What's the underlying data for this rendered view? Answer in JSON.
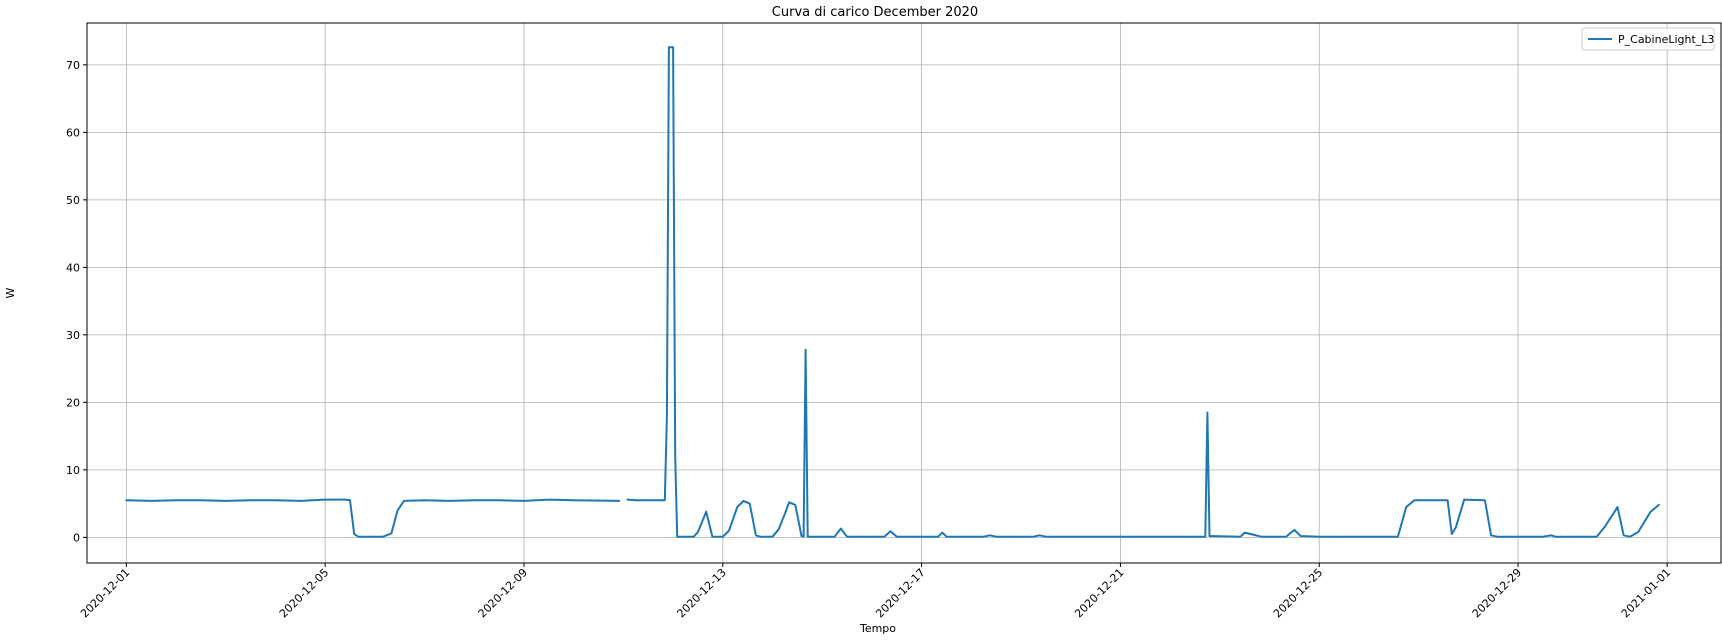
{
  "chart_data": {
    "type": "line",
    "title": "Curva di carico December 2020",
    "xlabel": "Tempo",
    "ylabel": "W",
    "x_range": [
      "2020-11-30T05:00",
      "2021-01-02T02:00"
    ],
    "ylim": [
      -3.8,
      76.2
    ],
    "y_ticks": [
      0,
      10,
      20,
      30,
      40,
      50,
      60,
      70
    ],
    "x_ticks": [
      "2020-12-01",
      "2020-12-05",
      "2020-12-09",
      "2020-12-13",
      "2020-12-17",
      "2020-12-21",
      "2020-12-25",
      "2020-12-29",
      "2021-01-01"
    ],
    "grid": true,
    "legend_position": "top-right",
    "series": [
      {
        "name": "P_CabineLight_L3",
        "color": "#1f77b4",
        "segments": [
          [
            [
              "2020-12-01T00:00",
              5.5
            ],
            [
              "2020-12-01T12:00",
              5.4
            ],
            [
              "2020-12-02T00:00",
              5.5
            ],
            [
              "2020-12-02T12:00",
              5.5
            ],
            [
              "2020-12-03T00:00",
              5.4
            ],
            [
              "2020-12-03T12:00",
              5.5
            ],
            [
              "2020-12-04T00:00",
              5.5
            ],
            [
              "2020-12-04T12:00",
              5.4
            ],
            [
              "2020-12-05T00:00",
              5.6
            ],
            [
              "2020-12-05T10:00",
              5.6
            ],
            [
              "2020-12-05T12:00",
              5.5
            ],
            [
              "2020-12-05T14:00",
              0.5
            ],
            [
              "2020-12-05T16:00",
              0.1
            ],
            [
              "2020-12-06T04:00",
              0.1
            ],
            [
              "2020-12-06T08:00",
              0.6
            ],
            [
              "2020-12-06T11:00",
              4.0
            ],
            [
              "2020-12-06T14:00",
              5.4
            ],
            [
              "2020-12-07T00:00",
              5.5
            ],
            [
              "2020-12-07T12:00",
              5.4
            ],
            [
              "2020-12-08T00:00",
              5.5
            ],
            [
              "2020-12-08T12:00",
              5.5
            ],
            [
              "2020-12-09T00:00",
              5.4
            ],
            [
              "2020-12-09T12:00",
              5.6
            ],
            [
              "2020-12-10T00:00",
              5.5
            ],
            [
              "2020-12-10T22:00",
              5.4
            ]
          ],
          [
            [
              "2020-12-11T02:00",
              5.6
            ],
            [
              "2020-12-11T06:00",
              5.5
            ],
            [
              "2020-12-11T20:00",
              5.5
            ],
            [
              "2020-12-11T21:00",
              18.0
            ],
            [
              "2020-12-11T22:00",
              72.6
            ],
            [
              "2020-12-12T00:00",
              72.6
            ],
            [
              "2020-12-12T01:00",
              12.0
            ],
            [
              "2020-12-12T02:00",
              0.1
            ],
            [
              "2020-12-12T10:00",
              0.1
            ],
            [
              "2020-12-12T12:00",
              0.8
            ],
            [
              "2020-12-12T16:00",
              3.8
            ],
            [
              "2020-12-12T19:00",
              0.1
            ],
            [
              "2020-12-13T00:00",
              0.1
            ],
            [
              "2020-12-13T03:00",
              1.0
            ],
            [
              "2020-12-13T07:00",
              4.5
            ],
            [
              "2020-12-13T10:00",
              5.4
            ],
            [
              "2020-12-13T13:00",
              5.0
            ],
            [
              "2020-12-13T16:00",
              0.3
            ],
            [
              "2020-12-13T18:00",
              0.1
            ],
            [
              "2020-12-14T00:00",
              0.1
            ],
            [
              "2020-12-14T03:00",
              1.2
            ],
            [
              "2020-12-14T06:00",
              3.5
            ],
            [
              "2020-12-14T08:00",
              5.2
            ],
            [
              "2020-12-14T11:00",
              4.8
            ],
            [
              "2020-12-14T14:00",
              0.2
            ],
            [
              "2020-12-14T15:00",
              0.1
            ],
            [
              "2020-12-14T16:00",
              27.8
            ],
            [
              "2020-12-14T17:00",
              0.1
            ],
            [
              "2020-12-15T06:00",
              0.1
            ],
            [
              "2020-12-15T09:00",
              1.3
            ],
            [
              "2020-12-15T12:00",
              0.1
            ],
            [
              "2020-12-16T06:00",
              0.1
            ],
            [
              "2020-12-16T09:00",
              0.9
            ],
            [
              "2020-12-16T12:00",
              0.1
            ],
            [
              "2020-12-17T08:00",
              0.1
            ],
            [
              "2020-12-17T10:00",
              0.7
            ],
            [
              "2020-12-17T12:00",
              0.1
            ],
            [
              "2020-12-18T06:00",
              0.1
            ],
            [
              "2020-12-18T09:00",
              0.3
            ],
            [
              "2020-12-18T12:00",
              0.1
            ],
            [
              "2020-12-19T06:00",
              0.1
            ],
            [
              "2020-12-19T09:00",
              0.3
            ],
            [
              "2020-12-19T12:00",
              0.1
            ],
            [
              "2020-12-20T12:00",
              0.1
            ],
            [
              "2020-12-21T00:00",
              0.1
            ],
            [
              "2020-12-22T12:00",
              0.1
            ],
            [
              "2020-12-22T17:00",
              0.1
            ],
            [
              "2020-12-22T18:00",
              18.5
            ],
            [
              "2020-12-22T19:00",
              0.2
            ],
            [
              "2020-12-23T10:00",
              0.1
            ],
            [
              "2020-12-23T12:00",
              0.7
            ],
            [
              "2020-12-23T16:00",
              0.4
            ],
            [
              "2020-12-23T20:00",
              0.1
            ],
            [
              "2020-12-24T08:00",
              0.1
            ],
            [
              "2020-12-24T12:00",
              1.1
            ],
            [
              "2020-12-24T15:00",
              0.2
            ],
            [
              "2020-12-25T00:00",
              0.1
            ],
            [
              "2020-12-26T14:00",
              0.1
            ],
            [
              "2020-12-26T18:00",
              4.5
            ],
            [
              "2020-12-26T22:00",
              5.5
            ],
            [
              "2020-12-27T14:00",
              5.5
            ],
            [
              "2020-12-27T16:00",
              0.5
            ],
            [
              "2020-12-27T18:00",
              1.5
            ],
            [
              "2020-12-27T22:00",
              5.6
            ],
            [
              "2020-12-28T08:00",
              5.5
            ],
            [
              "2020-12-28T11:00",
              0.3
            ],
            [
              "2020-12-28T14:00",
              0.1
            ],
            [
              "2020-12-29T12:00",
              0.1
            ],
            [
              "2020-12-29T16:00",
              0.3
            ],
            [
              "2020-12-29T18:00",
              0.1
            ],
            [
              "2020-12-30T14:00",
              0.1
            ],
            [
              "2020-12-30T18:00",
              1.6
            ],
            [
              "2020-12-30T22:00",
              3.5
            ],
            [
              "2020-12-31T00:00",
              4.5
            ],
            [
              "2020-12-31T03:00",
              0.3
            ],
            [
              "2020-12-31T06:00",
              0.1
            ],
            [
              "2020-12-31T10:00",
              0.8
            ],
            [
              "2020-12-31T16:00",
              3.8
            ],
            [
              "2020-12-31T20:00",
              4.8
            ]
          ]
        ]
      }
    ]
  }
}
